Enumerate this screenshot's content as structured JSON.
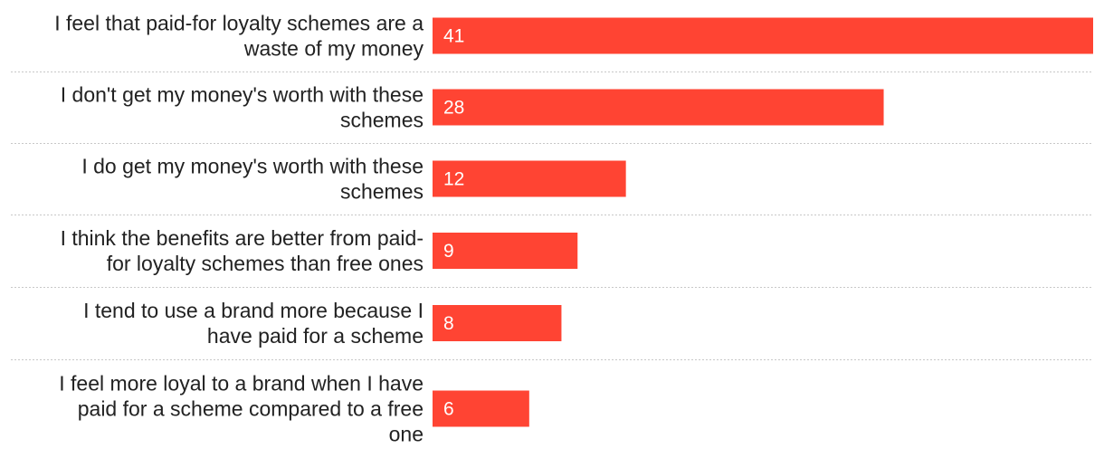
{
  "chart_data": {
    "type": "bar",
    "orientation": "horizontal",
    "title": "",
    "xlabel": "",
    "ylabel": "",
    "xlim": [
      0,
      41
    ],
    "grid": false,
    "legend": "none",
    "bar_color": "#ff4433",
    "categories": [
      [
        "I feel that paid-for loyalty schemes are a",
        "waste of my money"
      ],
      [
        "I don't get my money's worth with these",
        "schemes"
      ],
      [
        "I do get my money's worth with these",
        "schemes"
      ],
      [
        "I think the benefits are better from paid-",
        "for loyalty schemes than free ones"
      ],
      [
        "I tend to use a brand more because I",
        "have paid for a scheme"
      ],
      [
        "I feel more loyal to a brand when I have",
        "paid for a scheme compared to a free",
        "one"
      ]
    ],
    "values": [
      41,
      28,
      12,
      9,
      8,
      6
    ]
  }
}
